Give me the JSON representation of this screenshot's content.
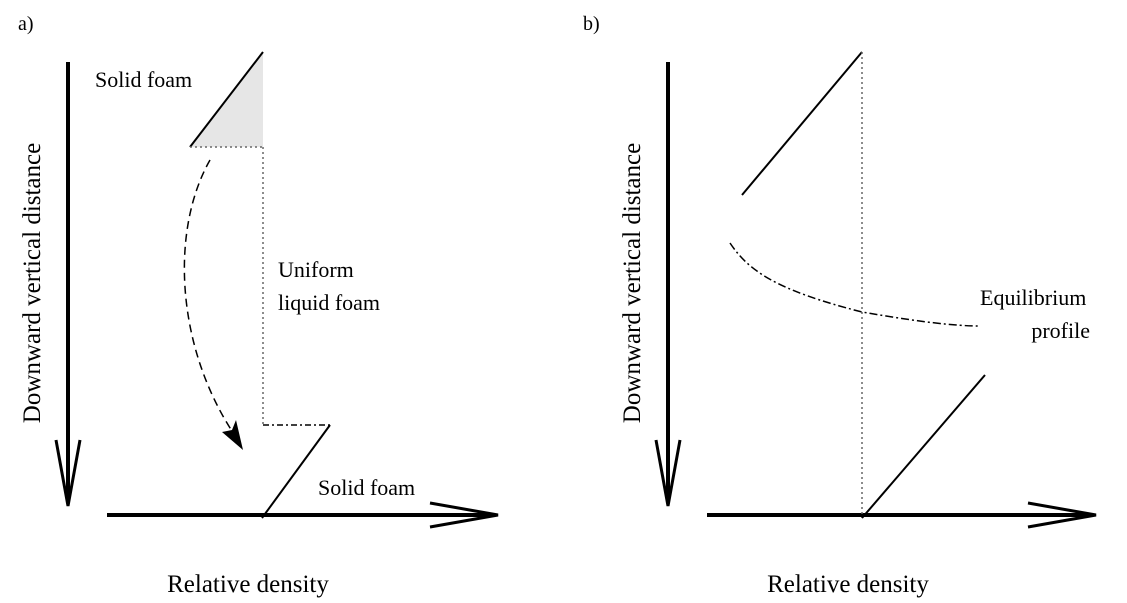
{
  "panels": [
    {
      "label": "a)",
      "y_axis_label": "Downward vertical distance",
      "x_axis_label": "Relative density",
      "annotations": [
        "Solid foam",
        "Uniform",
        "liquid foam",
        "Solid foam"
      ]
    },
    {
      "label": "b)",
      "y_axis_label": "Downward vertical distance",
      "x_axis_label": "Relative density",
      "annotations": [
        "Equilibrium",
        "profile"
      ]
    }
  ]
}
